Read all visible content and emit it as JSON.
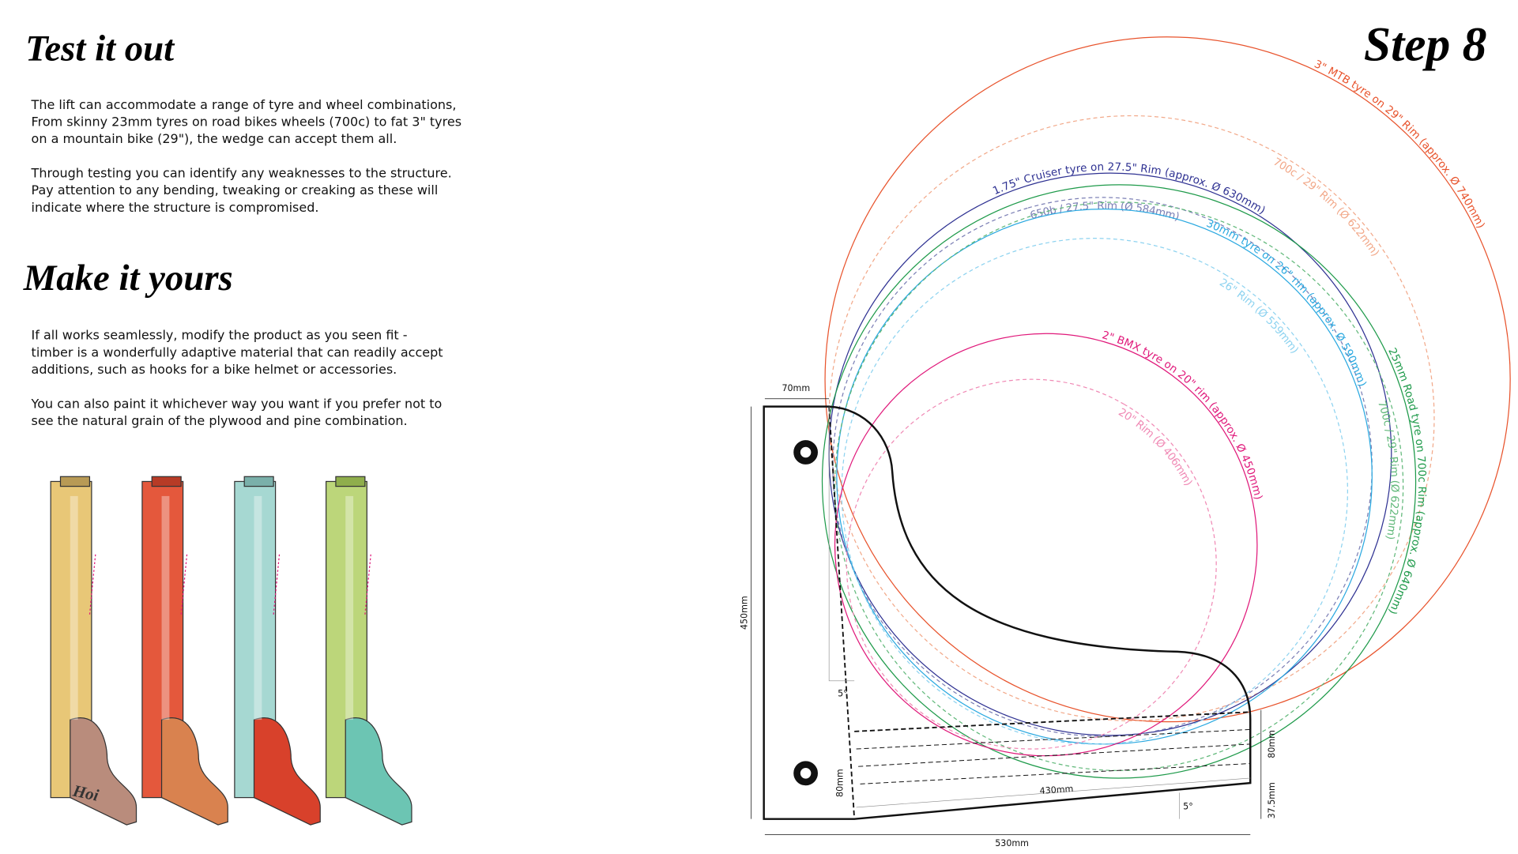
{
  "header": {
    "title": "Test it out",
    "step": "Step 8"
  },
  "intro": {
    "paragraphs": [
      [
        "The lift can accommodate a range of tyre and wheel combinations,",
        "From skinny 23mm tyres on road bikes wheels (700c) to fat 3\" tyres",
        "on a mountain bike (29\"), the wedge can accept them all."
      ],
      [
        "Through testing you can identify any weaknesses to the structure.",
        "Pay attention to any bending, tweaking or creaking as these will",
        "indicate where the structure is compromised."
      ]
    ]
  },
  "custom": {
    "title": "Make it yours",
    "paragraphs": [
      [
        "If all works seamlessly, modify the product as you seen fit -",
        "timber is a wonderfully adaptive material that can readily accept",
        "additions, such as hooks for a bike helmet or accessories."
      ],
      [
        "You can also paint it whichever way you want if you prefer not to",
        "see the natural grain of the plywood and pine combination."
      ]
    ]
  },
  "illustration": {
    "engraving": "Hoi"
  },
  "diagram": {
    "circles": [
      {
        "label": "3\" MTB tyre on 29\" Rim (approx. Ø 740mm)"
      },
      {
        "label": "700c / 29\" Rim (Ø 622mm)"
      },
      {
        "label": "1.75\" Cruiser tyre on 27.5\" Rim (approx. Ø 630mm)"
      },
      {
        "label": "650b / 27.5\" Rim (Ø 584mm)"
      },
      {
        "label": "30mm tyre on 26\" rim (approx. Ø 590mm)"
      },
      {
        "label": "26\" Rim (Ø 559mm)"
      },
      {
        "label": "25mm Road tyre on 700c Rim (approx. Ø 640mm)"
      },
      {
        "label": "700c / 29\" Rim (Ø 622mm)"
      },
      {
        "label": "2\" BMX tyre on 20\" rim (approx. Ø 450mm)"
      },
      {
        "label": "20\" Rim (Ø 406mm)"
      }
    ],
    "dimensions": [
      "70mm",
      "450mm",
      "5°",
      "80mm",
      "430mm",
      "5°",
      "80mm",
      "37.5mm",
      "530mm"
    ]
  }
}
